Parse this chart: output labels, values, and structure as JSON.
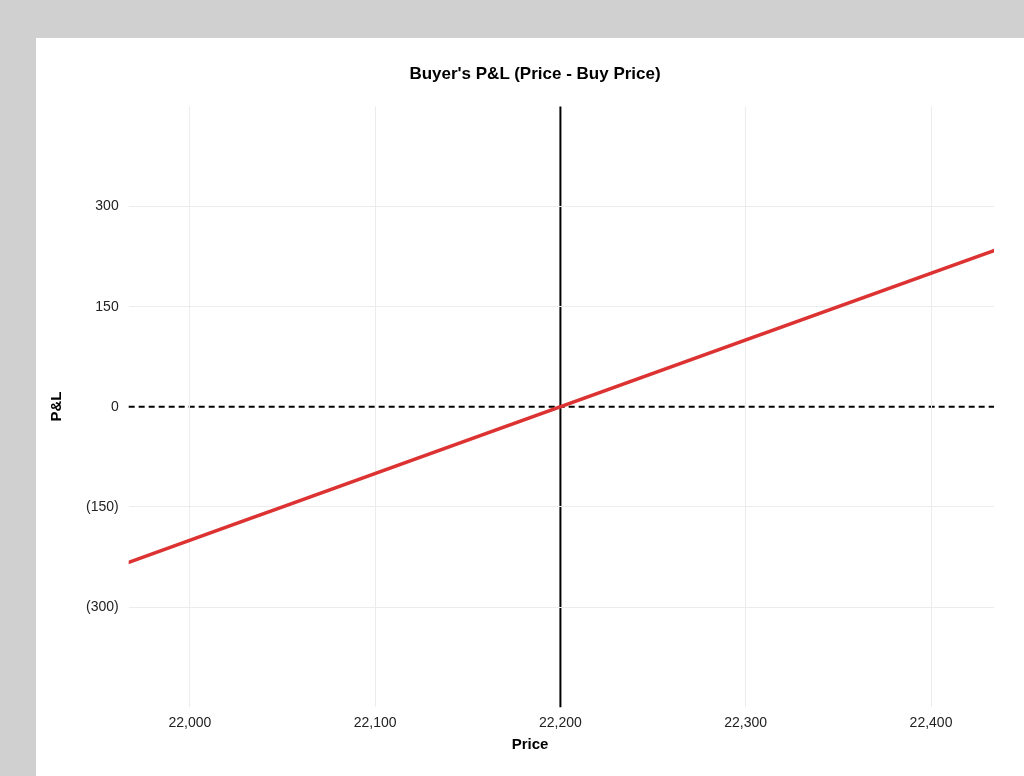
{
  "chart_data": {
    "type": "line",
    "title": "Buyer's P&L (Price - Buy Price)",
    "xlabel": "Price",
    "ylabel": "P&L",
    "x": [
      21967,
      22434
    ],
    "series": [
      {
        "color": "#dc3232",
        "values": [
          -233,
          234
        ]
      }
    ],
    "xlim": [
      21967,
      22434
    ],
    "xticks": [
      {
        "value": 22000,
        "label": "22,000"
      },
      {
        "value": 22100,
        "label": "22,100"
      },
      {
        "value": 22200,
        "label": "22,200"
      },
      {
        "value": 22300,
        "label": "22,300"
      },
      {
        "value": 22400,
        "label": "22,400"
      }
    ],
    "ylim": [
      -450,
      450
    ],
    "yticks": [
      {
        "value": -300,
        "label": "(300)"
      },
      {
        "value": -150,
        "label": "(150)"
      },
      0,
      150,
      300
    ],
    "ref_lines": [
      {
        "axis": "y",
        "value": 0,
        "color": "#000000",
        "line_style": "dashed"
      },
      {
        "axis": "x",
        "value": 22200,
        "color": "#000000",
        "line_style": "solid"
      }
    ],
    "grid": true,
    "legend": false,
    "marker": "none",
    "line_style": "solid"
  }
}
